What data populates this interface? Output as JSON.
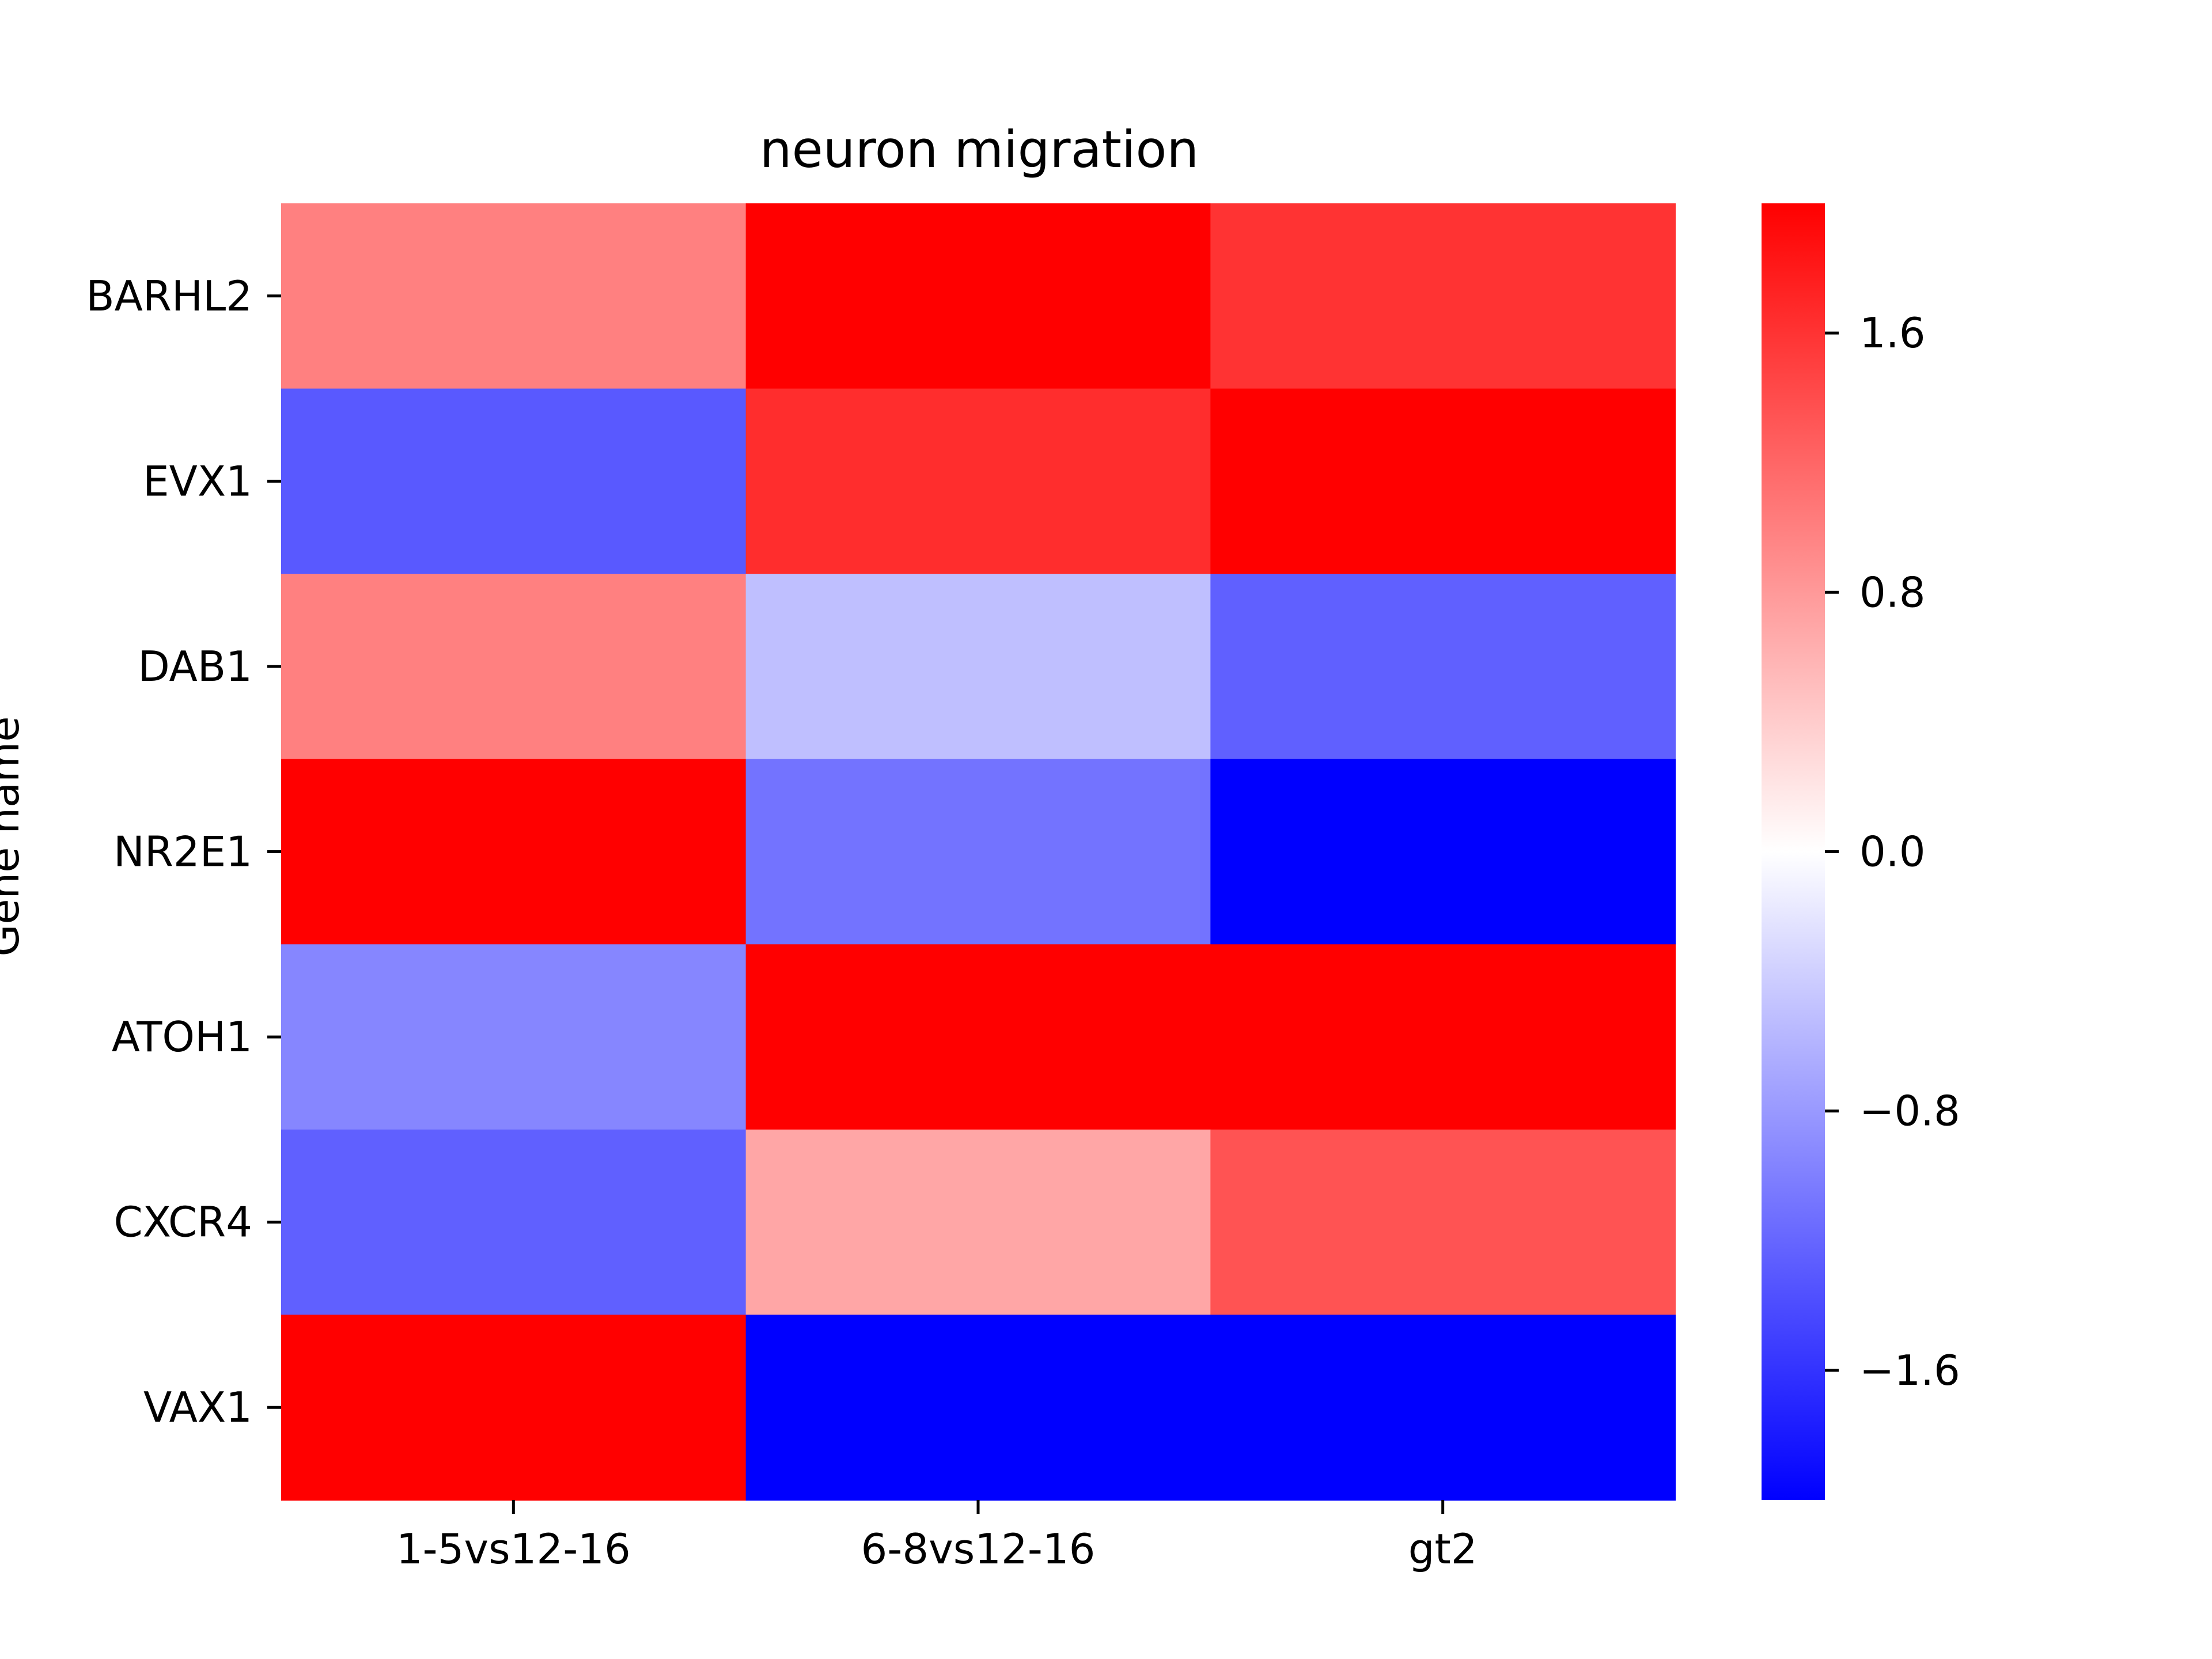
{
  "chart_data": {
    "type": "heatmap",
    "title": "neuron migration",
    "xlabel": "",
    "ylabel": "Gene name",
    "x_categories": [
      "1-5vs12-16",
      "6-8vs12-16",
      "gt2"
    ],
    "y_categories": [
      "BARHL2",
      "EVX1",
      "DAB1",
      "NR2E1",
      "ATOH1",
      "CXCR4",
      "VAX1"
    ],
    "values": [
      [
        1.0,
        2.0,
        1.6
      ],
      [
        -1.3,
        1.65,
        2.0
      ],
      [
        1.0,
        -0.5,
        -1.25
      ],
      [
        2.0,
        -1.1,
        -2.0
      ],
      [
        -0.95,
        2.0,
        2.0
      ],
      [
        -1.25,
        0.7,
        1.35
      ],
      [
        2.0,
        -2.0,
        -2.0
      ]
    ],
    "colorbar": {
      "colormap": "bwr",
      "vmin": -2.0,
      "vmax": 2.0,
      "ticks": [
        -1.6,
        -0.8,
        0.0,
        0.8,
        1.6
      ],
      "tick_labels": [
        "−1.6",
        "−0.8",
        "0.0",
        "0.8",
        "1.6"
      ],
      "low_color": "#0000ff",
      "mid_color": "#ffffff",
      "high_color": "#ff0000"
    },
    "grid": false
  }
}
